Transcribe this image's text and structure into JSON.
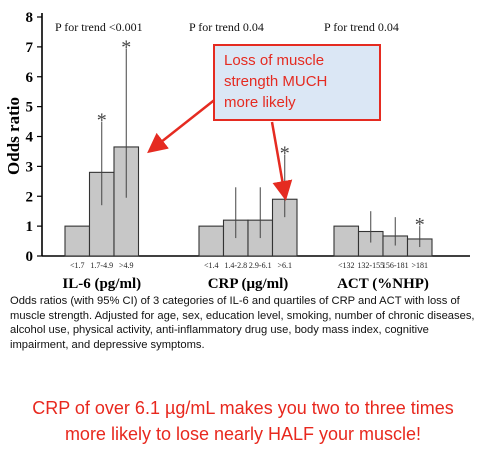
{
  "chart_data": {
    "type": "bar",
    "ylabel": "Odds ratio",
    "ylim": [
      0,
      8
    ],
    "yticks": [
      0,
      1,
      2,
      3,
      4,
      5,
      6,
      7,
      8
    ],
    "groups": [
      {
        "name": "IL-6 (pg/ml)",
        "trend": "P for trend <0.001",
        "categories": [
          "<1.7",
          "1.7-4.9",
          ">4.9"
        ],
        "values": [
          1.0,
          2.8,
          3.65
        ],
        "ci_upper": [
          1.0,
          4.5,
          6.95
        ],
        "ci_lower": [
          1.0,
          1.7,
          1.95
        ],
        "star": [
          false,
          true,
          true
        ]
      },
      {
        "name": "CRP (μg/ml)",
        "trend": "P for trend 0.04",
        "categories": [
          "<1.4",
          "1.4-2.8",
          "2.9-6.1",
          ">6.1"
        ],
        "values": [
          1.0,
          1.2,
          1.2,
          1.9
        ],
        "ci_upper": [
          1.0,
          2.3,
          2.3,
          3.4
        ],
        "ci_lower": [
          1.0,
          0.6,
          0.6,
          1.3
        ],
        "star": [
          false,
          false,
          false,
          true
        ]
      },
      {
        "name": "ACT (%NHP)",
        "trend": "P for trend 0.04",
        "categories": [
          "<132",
          "132-155",
          "156-181",
          ">181"
        ],
        "values": [
          1.0,
          0.82,
          0.67,
          0.57
        ],
        "ci_upper": [
          1.0,
          1.5,
          1.3,
          1.0
        ],
        "ci_lower": [
          1.0,
          0.45,
          0.35,
          0.3
        ],
        "star": [
          false,
          false,
          false,
          true
        ]
      }
    ],
    "colors": {
      "bar_fill": "#c7c7c7",
      "bar_stroke": "#333333",
      "arrow": "#e52b21"
    }
  },
  "callout": {
    "lines": [
      "Loss of muscle",
      "strength MUCH",
      "more likely"
    ]
  },
  "caption": "Odds ratios (with 95% CI) of 3 categories of IL-6 and quartiles of CRP and ACT with loss of muscle strength. Adjusted for age, sex, education level, smoking, number of chronic diseases, alcohol use, physical activity, anti-inflammatory drug use, body mass index, cognitive impairment, and depressive symptoms.",
  "headline": {
    "line1": "CRP of over 6.1 µg/mL makes you two to three times",
    "line2": "more likely to lose nearly HALF your muscle!"
  }
}
